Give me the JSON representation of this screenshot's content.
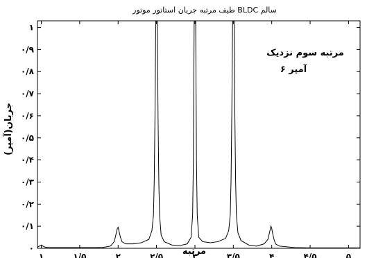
{
  "chart_data": {
    "type": "line",
    "title": "طیف مرتبه جریان استاتور موتور BLDC سالم",
    "xlabel": "مرتبه",
    "ylabel": "جریان(آمپر)",
    "xlim": [
      0.95,
      5.15
    ],
    "ylim": [
      0,
      1.03
    ],
    "xticks": [
      1,
      1.5,
      2,
      2.5,
      3,
      3.5,
      4,
      4.5,
      5
    ],
    "xtick_labels": [
      "۱",
      "۱/۵",
      "۲",
      "۲/۵",
      "۳",
      "۳/۵",
      "۴",
      "۴/۵",
      "۵"
    ],
    "yticks": [
      0,
      0.1,
      0.2,
      0.3,
      0.4,
      0.5,
      0.6,
      0.7,
      0.8,
      0.9,
      1
    ],
    "ytick_labels": [
      "۰",
      "۰/۱",
      "۰/۲",
      "۰/۳",
      "۰/۴",
      "۰/۵",
      "۰/۶",
      "۰/۷",
      "۰/۸",
      "۰/۹",
      "۱"
    ],
    "annotation": [
      "مرتبه سوم نزدیک",
      "۶ آمپر"
    ],
    "series": [
      {
        "x": [
          0.95,
          1.0,
          1.02,
          1.05,
          1.1,
          1.3,
          1.5,
          1.7,
          1.8,
          1.9,
          1.95,
          1.97,
          1.99,
          2.0,
          2.01,
          2.03,
          2.05,
          2.1,
          2.2,
          2.3,
          2.4,
          2.44,
          2.46,
          2.47,
          2.48,
          2.49,
          2.5,
          2.51,
          2.52,
          2.53,
          2.54,
          2.56,
          2.6,
          2.7,
          2.8,
          2.9,
          2.95,
          2.97,
          2.98,
          2.99,
          3.0,
          3.01,
          3.02,
          3.03,
          3.05,
          3.1,
          3.2,
          3.3,
          3.4,
          3.44,
          3.46,
          3.47,
          3.48,
          3.49,
          3.5,
          3.51,
          3.52,
          3.53,
          3.54,
          3.56,
          3.6,
          3.7,
          3.8,
          3.9,
          3.95,
          3.97,
          3.99,
          4.0,
          4.01,
          4.03,
          4.05,
          4.1,
          4.3,
          4.5,
          4.7,
          4.9,
          5.1,
          5.15
        ],
        "y": [
          0.005,
          0.015,
          0.01,
          0.005,
          0.003,
          0.003,
          0.003,
          0.003,
          0.004,
          0.01,
          0.03,
          0.06,
          0.09,
          0.095,
          0.08,
          0.05,
          0.03,
          0.02,
          0.02,
          0.025,
          0.04,
          0.08,
          0.15,
          0.3,
          0.6,
          1.03,
          1.03,
          1.03,
          0.6,
          0.3,
          0.15,
          0.06,
          0.03,
          0.015,
          0.012,
          0.02,
          0.05,
          0.15,
          0.4,
          1.03,
          1.03,
          1.03,
          0.4,
          0.15,
          0.05,
          0.03,
          0.025,
          0.03,
          0.045,
          0.08,
          0.15,
          0.3,
          0.6,
          1.03,
          1.03,
          1.03,
          0.6,
          0.3,
          0.15,
          0.07,
          0.035,
          0.015,
          0.01,
          0.02,
          0.04,
          0.07,
          0.1,
          0.09,
          0.07,
          0.04,
          0.02,
          0.01,
          0.003,
          0.002,
          0.002,
          0.002,
          0.002,
          0.002
        ]
      }
    ],
    "color": "#000000",
    "grid": false
  }
}
